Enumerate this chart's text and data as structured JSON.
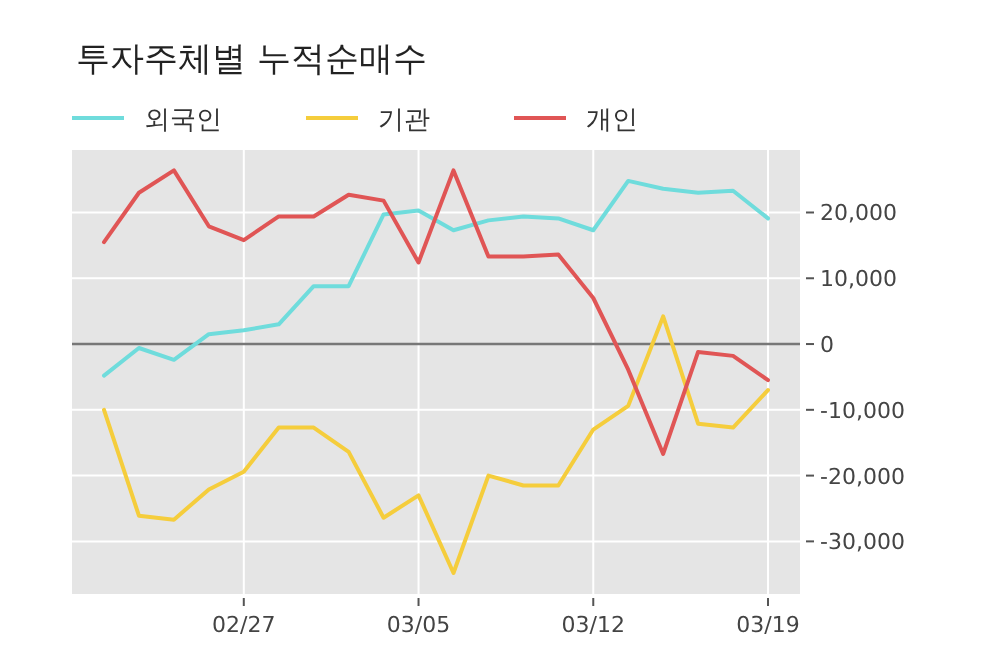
{
  "chart_data": {
    "type": "line",
    "title": "투자주체별 누적순매수",
    "categories": [
      null,
      null,
      null,
      null,
      "02/27",
      null,
      null,
      null,
      null,
      "03/05",
      null,
      null,
      null,
      null,
      "03/12",
      null,
      null,
      null,
      null,
      "03/19"
    ],
    "series": [
      {
        "name": "외국인",
        "color": "#6fdcdc",
        "values": [
          -4800,
          -600,
          -2400,
          1500,
          2100,
          3000,
          8800,
          8800,
          19700,
          20300,
          17300,
          18800,
          19400,
          19100,
          17300,
          24800,
          23600,
          23000,
          23300,
          19100
        ]
      },
      {
        "name": "기관",
        "color": "#f5cd3c",
        "values": [
          -10000,
          -26100,
          -26700,
          -22100,
          -19400,
          -12700,
          -12700,
          -16400,
          -26400,
          -23000,
          -34800,
          -20000,
          -21500,
          -21500,
          -13000,
          -9400,
          4200,
          -12100,
          -12700,
          -7000
        ]
      },
      {
        "name": "개인",
        "color": "#e05555",
        "values": [
          15500,
          23000,
          26400,
          17900,
          15800,
          19400,
          19400,
          22700,
          21800,
          12400,
          26400,
          13300,
          13300,
          13600,
          7000,
          -3900,
          -16700,
          -1200,
          -1800,
          -5500
        ]
      }
    ],
    "ylim": [
      -38000,
      29500
    ],
    "yticks": [
      {
        "value": -30000,
        "label": "-30,000"
      },
      {
        "value": -20000,
        "label": "-20,000"
      },
      {
        "value": -10000,
        "label": "-10,000"
      },
      0,
      {
        "value": 10000,
        "label": "10,000"
      },
      {
        "value": 20000,
        "label": "20,000"
      }
    ],
    "grid": true,
    "legend": "top left",
    "ref_lines": [
      {
        "axis": "y",
        "value": 0,
        "color": "#777777"
      }
    ]
  }
}
